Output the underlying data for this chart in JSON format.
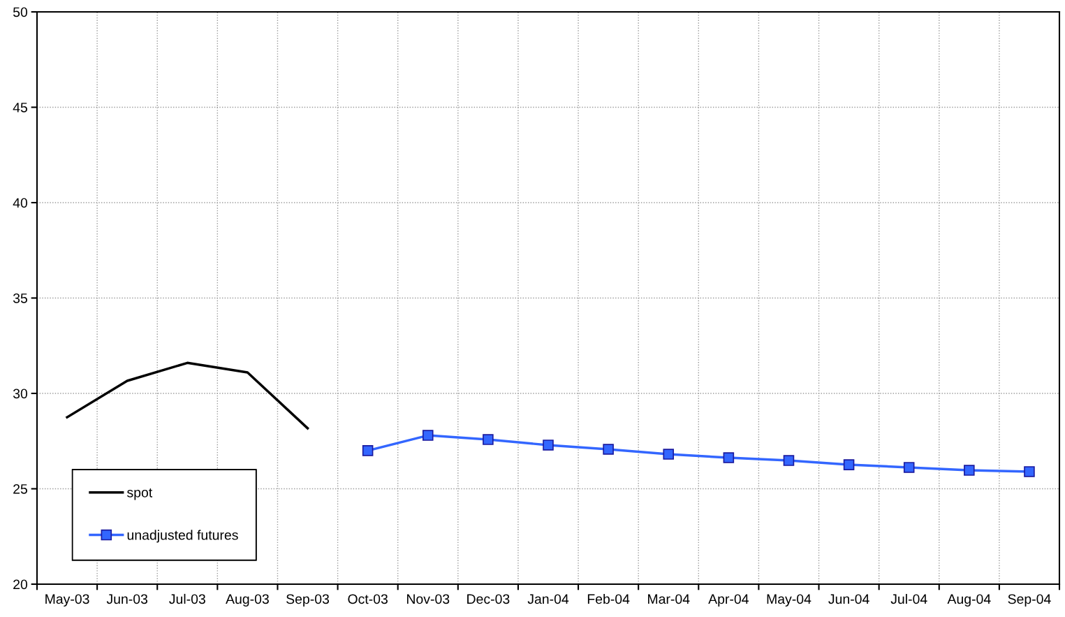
{
  "chart_data": {
    "type": "line",
    "categories": [
      "May-03",
      "Jun-03",
      "Jul-03",
      "Aug-03",
      "Sep-03",
      "Oct-03",
      "Nov-03",
      "Dec-03",
      "Jan-04",
      "Feb-04",
      "Mar-04",
      "Apr-04",
      "May-04",
      "Jun-04",
      "Jul-04",
      "Aug-04",
      "Sep-04"
    ],
    "series": [
      {
        "name": "spot",
        "color": "#000000",
        "marker": "none",
        "values": [
          28.75,
          30.66,
          31.6,
          31.1,
          28.17,
          null,
          null,
          null,
          null,
          null,
          null,
          null,
          null,
          null,
          null,
          null,
          null
        ]
      },
      {
        "name": "unadjusted futures",
        "color": "#3366ff",
        "marker": "square",
        "values": [
          null,
          null,
          null,
          null,
          null,
          27.0,
          27.8,
          27.58,
          27.29,
          27.07,
          26.81,
          26.63,
          26.48,
          26.26,
          26.12,
          25.97,
          25.9
        ]
      }
    ],
    "ylim": [
      20,
      50
    ],
    "yticks": [
      20,
      25,
      30,
      35,
      40,
      45,
      50
    ],
    "grid": true,
    "legend": "bottom left"
  }
}
